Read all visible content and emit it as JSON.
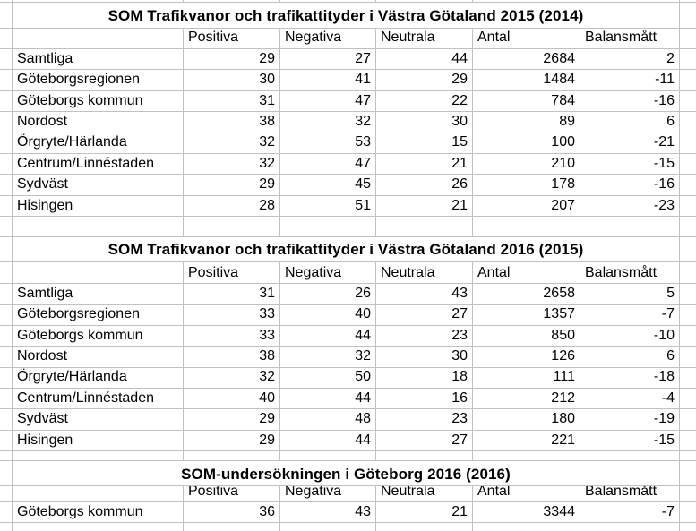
{
  "app": {
    "kind": "spreadsheet",
    "background_color": "#ffffff",
    "gridline_color": "#c1c1c1",
    "text_color": "#000000"
  },
  "tables": [
    {
      "title": "SOM Trafikvanor och trafikattityder i Västra Götaland 2015 (2014)",
      "headers": [
        "Positiva",
        "Negativa",
        "Neutrala",
        "Antal",
        "Balansmått"
      ],
      "rows": [
        {
          "label": "Samtliga",
          "values": [
            29,
            27,
            44,
            2684,
            2
          ]
        },
        {
          "label": "Göteborgsregionen",
          "values": [
            30,
            41,
            29,
            1484,
            -11
          ]
        },
        {
          "label": "Göteborgs kommun",
          "values": [
            31,
            47,
            22,
            784,
            -16
          ]
        },
        {
          "label": "Nordost",
          "values": [
            38,
            32,
            30,
            89,
            6
          ]
        },
        {
          "label": "Örgryte/Härlanda",
          "values": [
            32,
            53,
            15,
            100,
            -21
          ]
        },
        {
          "label": "Centrum/Linnéstaden",
          "values": [
            32,
            47,
            21,
            210,
            -15
          ]
        },
        {
          "label": "Sydväst",
          "values": [
            29,
            45,
            26,
            178,
            -16
          ]
        },
        {
          "label": "Hisingen",
          "values": [
            28,
            51,
            21,
            207,
            -23
          ]
        }
      ]
    },
    {
      "title": "SOM Trafikvanor och trafikattityder i Västra Götaland 2016 (2015)",
      "headers": [
        "Positiva",
        "Negativa",
        "Neutrala",
        "Antal",
        "Balansmått"
      ],
      "rows": [
        {
          "label": "Samtliga",
          "values": [
            31,
            26,
            43,
            2658,
            5
          ]
        },
        {
          "label": "Göteborgsregionen",
          "values": [
            33,
            40,
            27,
            1357,
            -7
          ]
        },
        {
          "label": "Göteborgs kommun",
          "values": [
            33,
            44,
            23,
            850,
            -10
          ]
        },
        {
          "label": "Nordost",
          "values": [
            38,
            32,
            30,
            126,
            6
          ]
        },
        {
          "label": "Örgryte/Härlanda",
          "values": [
            32,
            50,
            18,
            111,
            -18
          ]
        },
        {
          "label": "Centrum/Linnéstaden",
          "values": [
            40,
            44,
            16,
            212,
            -4
          ]
        },
        {
          "label": "Sydväst",
          "values": [
            29,
            48,
            23,
            180,
            -19
          ]
        },
        {
          "label": "Hisingen",
          "values": [
            29,
            44,
            27,
            221,
            -15
          ]
        }
      ]
    },
    {
      "title": "SOM-undersökningen i Göteborg 2016 (2016)",
      "headers": [
        "Positiva",
        "Negativa",
        "Neutrala",
        "Antal",
        "Balansmått"
      ],
      "rows": [
        {
          "label": "Göteborgs kommun",
          "values": [
            36,
            43,
            21,
            3344,
            -7
          ]
        }
      ]
    }
  ]
}
